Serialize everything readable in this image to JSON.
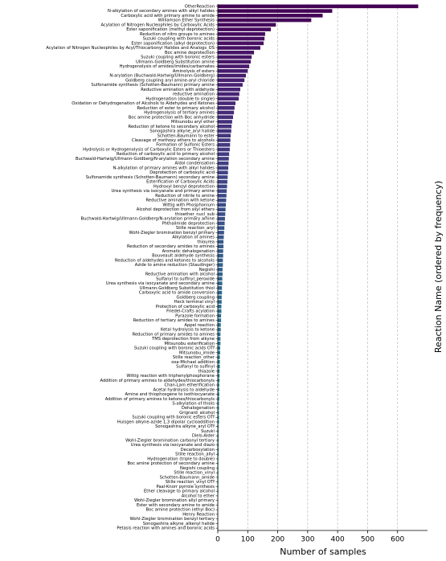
{
  "chart_data": {
    "type": "barh",
    "x_label": "Number of samples",
    "y_label": "Reaction Name (ordered by frequency)",
    "colormap": "viridis",
    "grid": true,
    "xlim": [
      0,
      700
    ],
    "xticks": [
      0,
      100,
      200,
      300,
      400,
      500,
      600
    ],
    "categories": [
      "OtherReaction",
      "N-alkylation of secondary amines with alkyl halides",
      "Carboxylic acid with primary amine to amide",
      "Williamson Ether Synthesis",
      "Acylation of Nitrogen Nucleophiles by Carboxylic Acids",
      "Ester saponification (methyl deprotection)",
      "Reduction of nitro groups to amines",
      "Suzuki coupling with boronic acids",
      "Ester saponification (alkyl deprotection)",
      "Acylation of Nitrogen Nucleophiles by Acyl/Thiocarbonyl Halides and Analogs_OS",
      "Boc amine deprotection",
      "Suzuki coupling with boronic esters",
      "Ullmann-Goldberg Substitution amine",
      "Hydrogenolysis of amides/imides/carbamates",
      "Aminolysis of esters",
      "N-arylation (Buchwald-Hartwig/Ullmann-Goldberg)",
      "Goldberg coupling aryl amine-aryl chloride",
      "Sulfonamide synthesis (Schotten-Baumann) primary amine",
      "Reductive amination with aldehyde",
      "reductive amination",
      "Hydrogenation (double to single)",
      "Oxidation or Dehydrogenation of Alcohols to Aldehydes and Ketones",
      "Reduction of ester to primary alcohol",
      "Hydrogenolysis of tertiary amines",
      "Boc amine protection with Boc anhydride",
      "Mitsunobu aryl ether",
      "Reduction of ketone to secondary alcohol",
      "Sonogashira alkyne_aryl halide",
      "Schotten-Baumann to ester",
      "Cleavage of methoxy ethers to alcohols",
      "Formation of Sulfonic Esters",
      "Hydrolysis or Hydrogenolysis of Carboxylic Esters or Thioesters",
      "Reduction of carboxylic acid to primary alcohol",
      "Buchwald-Hartwig/Ullmann-Goldberg/N-arylation secondary amine",
      "Aldol condensation",
      "N-alkylation of primary amines with alkyl halides",
      "Deprotection of carboxylic acid",
      "Sulfonamide synthesis (Schotten-Baumann) secondary amine",
      "Esterification of Carboxylic Acids",
      "Hydroxyl benzyl deprotection",
      "Urea synthesis via isocyanate and primary amine",
      "Reduction of nitrile to amine",
      "Reductive amination with ketone",
      "Wittig with Phosphonium",
      "Alcohol deprotection from silyl ethers",
      "thioether_nucl_sub",
      "Buchwald-Hartwig/Ullmann-Goldberg/N-arylation primary amine",
      "Phthalimide deprotection",
      "Stille reaction_aryl",
      "Wohl-Ziegler bromination benzyl primary",
      "Alkylation of amines",
      "thiourea",
      "Reduction of secondary amides to amines",
      "Aromatic dehalogenation",
      "Bouveault aldehyde synthesis",
      "Reduction of aldehydes and ketones to alcohols",
      "Azide to amine reduction (Staudinger)",
      "Negishi",
      "Reductive amination with alcohol",
      "Sulfanyl to sulfinyl_peroxide",
      "Urea synthesis via isocyanate and secondary amine",
      "Ullmann-Goldberg Substitution thiol",
      "Carboxylic acid to amide conversion",
      "Goldberg coupling",
      "Heck terminal vinyl",
      "Protection of carboxylic acid",
      "Friedel-Crafts acylation",
      "Pyrazole formation",
      "Reduction of tertiary amides to amines",
      "Appel reaction",
      "Ketal hydrolysis to ketone",
      "Reduction of primary amides to amines",
      "TMS deprotection from alkyne",
      "Mitsunobu esterification",
      "Suzuki coupling with boronic acids OTf",
      "Mitsunobu_imide",
      "Stille reaction_other",
      "oxa-Michael addition",
      "Sulfanyl to sulfinyl",
      "thiazole",
      "Wittig reaction with triphenylphosphorane",
      "Addition of primary amines to aldehydes/thiocarbonyls",
      "Chan-Lam etherification",
      "Acetal hydrolysis to aldehyde",
      "Amine and thiophosgene to isothiocyanate",
      "Addition of primary amines to ketones/thiocarbonyls",
      "S-alkylation of thiols",
      "Dehalogenation",
      "Grignard_alcohol",
      "Suzuki coupling with boronic esters OTf",
      "Huisgen alkyne-azide 1,3 dipolar cycloaddition",
      "Sonogashira alkyne_aryl OTf",
      "Suzuki",
      "Diels-Alder",
      "Wohl-Ziegler bromination carbonyl tertiary",
      "Urea synthesis via isocyanate and diazo",
      "Decarboxylation",
      "Stille reaction_allyl",
      "Hydrogenation (triple to double)",
      "Boc amine protection of secondary amine",
      "Negishi coupling",
      "Stille reaction_vinyl",
      "Schotten-Baumann_amide",
      "Stille reaction_vinyl OTf",
      "Paal-Knorr pyrrole synthesis",
      "Ether cleavage to primary alcohol",
      "Alcohol to ether",
      "Wohl-Ziegler bromination allyl primary",
      "Ester with secondary amine to amide",
      "Boc amine protection (ethyl Boc)",
      "Henry Reaction",
      "Wohl-Ziegler bromination benzyl tertiary",
      "Sonogashira alkyne_alkenyl halide",
      "Petasis reaction with amines and boronic acids"
    ],
    "values": [
      669,
      382,
      350,
      312,
      194,
      177,
      158,
      156,
      153,
      142,
      121,
      113,
      110,
      105,
      100,
      94,
      89,
      83,
      75,
      72,
      70,
      59,
      56,
      54,
      51,
      48,
      46,
      45,
      43,
      42,
      41,
      40,
      38,
      37,
      36,
      35,
      34,
      33,
      32,
      31,
      30,
      29,
      28,
      27,
      26,
      25,
      24,
      23,
      22,
      21,
      20,
      19,
      19,
      18,
      18,
      17,
      17,
      16,
      16,
      15,
      15,
      14,
      14,
      13,
      13,
      12,
      12,
      11,
      11,
      10,
      10,
      9,
      9,
      9,
      8,
      8,
      7,
      7,
      7,
      6,
      6,
      6,
      5,
      5,
      5,
      5,
      4,
      4,
      4,
      4,
      4,
      3,
      3,
      3,
      3,
      3,
      3,
      3,
      2,
      2,
      2,
      2,
      2,
      2,
      2,
      2,
      1,
      1,
      1,
      1,
      1,
      1,
      1,
      1
    ]
  }
}
